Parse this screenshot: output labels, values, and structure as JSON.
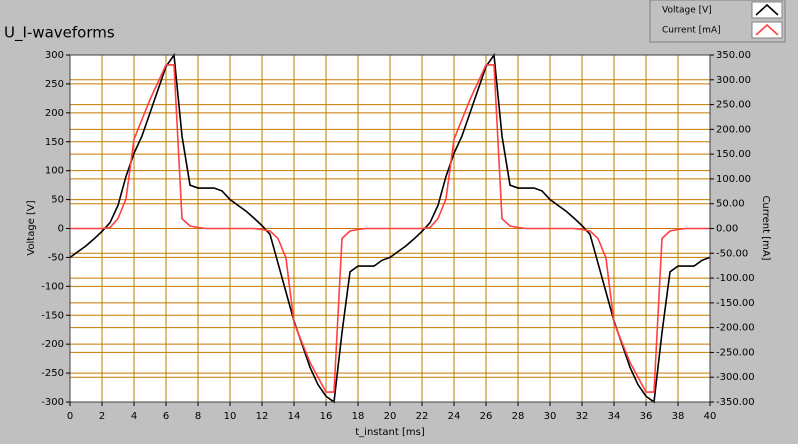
{
  "chart_data": {
    "type": "line",
    "title": "U_I-waveforms",
    "x_label": "t_instant [ms]",
    "y_label": "Voltage [V]",
    "y2_label": "Current [mA]",
    "x": [
      0,
      0.5,
      1,
      1.5,
      2,
      2.5,
      3,
      3.5,
      4,
      4.5,
      5,
      5.5,
      6,
      6.5,
      7,
      7.5,
      8,
      8.5,
      9,
      9.5,
      10,
      10.5,
      11,
      11.5,
      12,
      12.5,
      13,
      13.5,
      14,
      14.5,
      15,
      15.5,
      16,
      16.5,
      17,
      17.5,
      18,
      18.5,
      19,
      19.5,
      20,
      20.5,
      21,
      21.5,
      22,
      22.5,
      23,
      23.5,
      24,
      24.5,
      25,
      25.5,
      26,
      26.5,
      27,
      27.5,
      28,
      28.5,
      29,
      29.5,
      30,
      30.5,
      31,
      31.5,
      32,
      32.5,
      33,
      33.5,
      34,
      34.5,
      35,
      35.5,
      36,
      36.5,
      37,
      37.5,
      38,
      38.5,
      39,
      39.5,
      40
    ],
    "series": [
      {
        "name": "Voltage [V]",
        "color": "#000000",
        "values": [
          -50,
          -40,
          -30,
          -18,
          -5,
          10,
          40,
          90,
          130,
          160,
          200,
          240,
          280,
          300,
          160,
          75,
          70,
          70,
          70,
          65,
          50,
          40,
          30,
          18,
          5,
          -10,
          -60,
          -110,
          -160,
          -200,
          -240,
          -270,
          -290,
          -300,
          -180,
          -75,
          -65,
          -65,
          -65,
          -55,
          -50,
          -40,
          -30,
          -18,
          -5,
          10,
          40,
          90,
          130,
          160,
          200,
          240,
          280,
          300,
          160,
          75,
          70,
          70,
          70,
          65,
          50,
          40,
          30,
          18,
          5,
          -10,
          -60,
          -110,
          -160,
          -200,
          -240,
          -270,
          -290,
          -300,
          -180,
          -75,
          -65,
          -65,
          -65,
          -55,
          -50
        ]
      },
      {
        "name": "Current [mA]",
        "color": "#ff4040",
        "axis": "y2",
        "values": [
          0,
          0,
          0,
          0,
          0,
          2,
          20,
          60,
          180,
          220,
          260,
          295,
          330,
          330,
          20,
          5,
          2,
          0,
          0,
          0,
          0,
          0,
          0,
          0,
          -2,
          -5,
          -20,
          -60,
          -190,
          -230,
          -270,
          -300,
          -330,
          -330,
          -20,
          -5,
          -2,
          0,
          0,
          0,
          0,
          0,
          0,
          0,
          0,
          2,
          20,
          60,
          180,
          220,
          260,
          295,
          330,
          330,
          20,
          5,
          2,
          0,
          0,
          0,
          0,
          0,
          0,
          0,
          -2,
          -5,
          -20,
          -60,
          -190,
          -230,
          -270,
          -300,
          -330,
          -330,
          -20,
          -5,
          -2,
          0,
          0,
          0,
          0
        ]
      }
    ],
    "xlim": [
      0,
      40
    ],
    "xticks": [
      0,
      2,
      4,
      6,
      8,
      10,
      12,
      14,
      16,
      18,
      20,
      22,
      24,
      26,
      28,
      30,
      32,
      34,
      36,
      38,
      40
    ],
    "ylim": [
      -300,
      300
    ],
    "yticks": [
      -300,
      -250,
      -200,
      -150,
      -100,
      -50,
      0,
      50,
      100,
      150,
      200,
      250,
      300
    ],
    "y2lim": [
      -350,
      350
    ],
    "y2ticks": [
      {
        "value": -350,
        "label": "-350.00"
      },
      {
        "value": -300,
        "label": "-300.00"
      },
      {
        "value": -250,
        "label": "-250.00"
      },
      {
        "value": -200,
        "label": "-200.00"
      },
      {
        "value": -150,
        "label": "-150.00"
      },
      {
        "value": -100,
        "label": "-100.00"
      },
      {
        "value": -50,
        "label": "-50.00"
      },
      {
        "value": 0,
        "label": "0.00"
      },
      {
        "value": 50,
        "label": "50.00"
      },
      {
        "value": 100,
        "label": "100.00"
      },
      {
        "value": 150,
        "label": "150.00"
      },
      {
        "value": 200,
        "label": "200.00"
      },
      {
        "value": 250,
        "label": "250.00"
      },
      {
        "value": 300,
        "label": "300.00"
      },
      {
        "value": 350,
        "label": "350.00"
      }
    ],
    "grid": true,
    "grid_color": "#c87800",
    "legend": "top-right"
  }
}
